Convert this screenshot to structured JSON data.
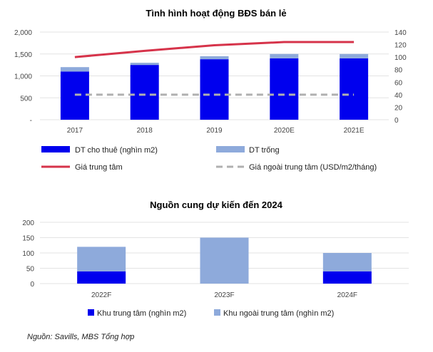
{
  "chart_data": [
    {
      "type": "bar",
      "title": "Tình hình hoạt động BĐS bán lẻ",
      "categories": [
        "2017",
        "2018",
        "2019",
        "2020E",
        "2021E"
      ],
      "y_left_ticks": [
        "2,000",
        "1,500",
        "1,000",
        "500",
        "-"
      ],
      "y_left_range": [
        0,
        2000
      ],
      "y_right_ticks": [
        "140",
        "120",
        "100",
        "80",
        "60",
        "40",
        "20",
        "0"
      ],
      "y_right_range": [
        0,
        140
      ],
      "series": [
        {
          "name": "DT cho thuê (nghìn m2)",
          "kind": "bar-stack",
          "axis": "left",
          "color": "#0000ee",
          "values": [
            1100,
            1250,
            1380,
            1400,
            1400
          ]
        },
        {
          "name": "DT trống",
          "kind": "bar-stack",
          "axis": "left",
          "color": "#8eaadb",
          "values": [
            100,
            50,
            70,
            100,
            100
          ]
        },
        {
          "name": "Giá trung tâm",
          "kind": "line",
          "axis": "right",
          "color": "#d6334a",
          "values": [
            100,
            110,
            119,
            124,
            124
          ]
        },
        {
          "name": "Giá ngoài trung tâm (USD/m2/tháng)",
          "kind": "dashed-line",
          "axis": "right",
          "color": "#b0b0b0",
          "values": [
            40,
            40,
            40,
            40,
            40
          ]
        }
      ],
      "gridlines": true,
      "legend_position": "bottom"
    },
    {
      "type": "bar",
      "title": "Nguồn cung dự kiến đến 2024",
      "categories": [
        "2022F",
        "2023F",
        "2024F"
      ],
      "y_ticks": [
        "200",
        "150",
        "100",
        "50",
        "0"
      ],
      "y_range": [
        0,
        200
      ],
      "series": [
        {
          "name": "Khu trung tâm (nghìn m2)",
          "color": "#0000ee",
          "values": [
            40,
            0,
            40
          ]
        },
        {
          "name": "Khu ngoài trung tâm (nghìn m2)",
          "color": "#8eaadb",
          "values": [
            80,
            150,
            60
          ]
        }
      ],
      "gridlines": true,
      "legend_position": "bottom"
    }
  ],
  "source_note": "Nguồn: Savills, MBS Tổng hợp"
}
